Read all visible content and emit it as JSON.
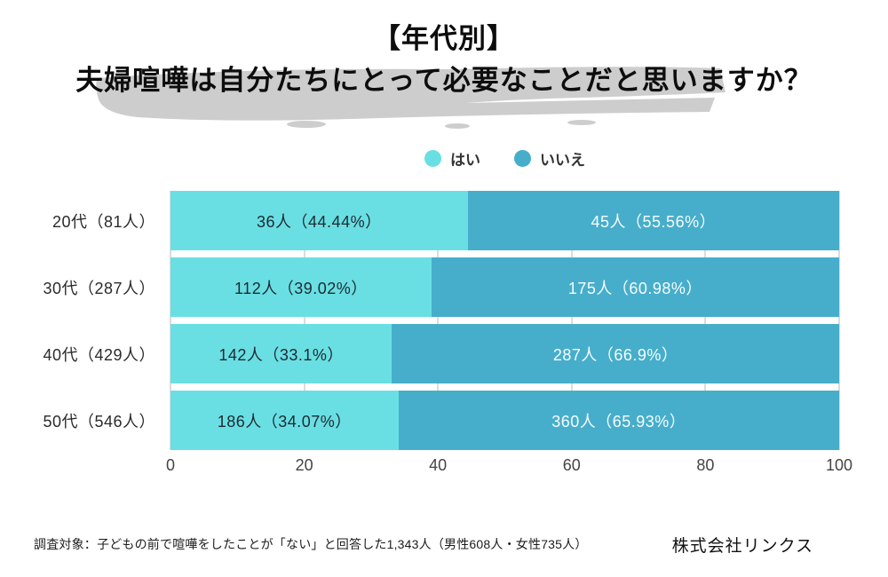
{
  "title": {
    "line1": "【年代別】",
    "line2": "夫婦喧嘩は自分たちにとって必要なことだと思いますか？"
  },
  "legend": {
    "items": [
      {
        "label": "はい",
        "color": "#69DFE3"
      },
      {
        "label": "いいえ",
        "color": "#46AECB"
      }
    ]
  },
  "colors": {
    "yes": "#69DFE3",
    "no": "#46AECB",
    "highlight": "#CDCDCD",
    "gridline": "#DCDCDC"
  },
  "chart_data": {
    "type": "bar",
    "orientation": "horizontal-stacked",
    "title": "【年代別】夫婦喧嘩は自分たちにとって必要なことだと思いますか？",
    "categories": [
      "20代（81人）",
      "30代（287人）",
      "40代（429人）",
      "50代（546人）"
    ],
    "category_totals": [
      81,
      287,
      429,
      546
    ],
    "series": [
      {
        "name": "はい",
        "counts": [
          36,
          112,
          142,
          186
        ],
        "percents": [
          44.44,
          39.02,
          33.1,
          34.07
        ]
      },
      {
        "name": "いいえ",
        "counts": [
          45,
          175,
          287,
          360
        ],
        "percents": [
          55.56,
          60.98,
          66.9,
          65.93
        ]
      }
    ],
    "bar_labels": [
      {
        "yes": "36人（44.44%）",
        "no": "45人（55.56%）"
      },
      {
        "yes": "112人（39.02%）",
        "no": "175人（60.98%）"
      },
      {
        "yes": "142人（33.1%）",
        "no": "287人（66.9%）"
      },
      {
        "yes": "186人（34.07%）",
        "no": "360人（65.93%）"
      }
    ],
    "x_ticks": [
      "0",
      "20",
      "40",
      "60",
      "80",
      "100"
    ],
    "xlim": [
      0,
      100
    ],
    "grid": "vertical",
    "legend_position": "top-center"
  },
  "footer": {
    "note": "調査対象：子どもの前で喧嘩をしたことが「ない」と回答した1,343人（男性608人・女性735人）",
    "company": "株式会社リンクス"
  }
}
